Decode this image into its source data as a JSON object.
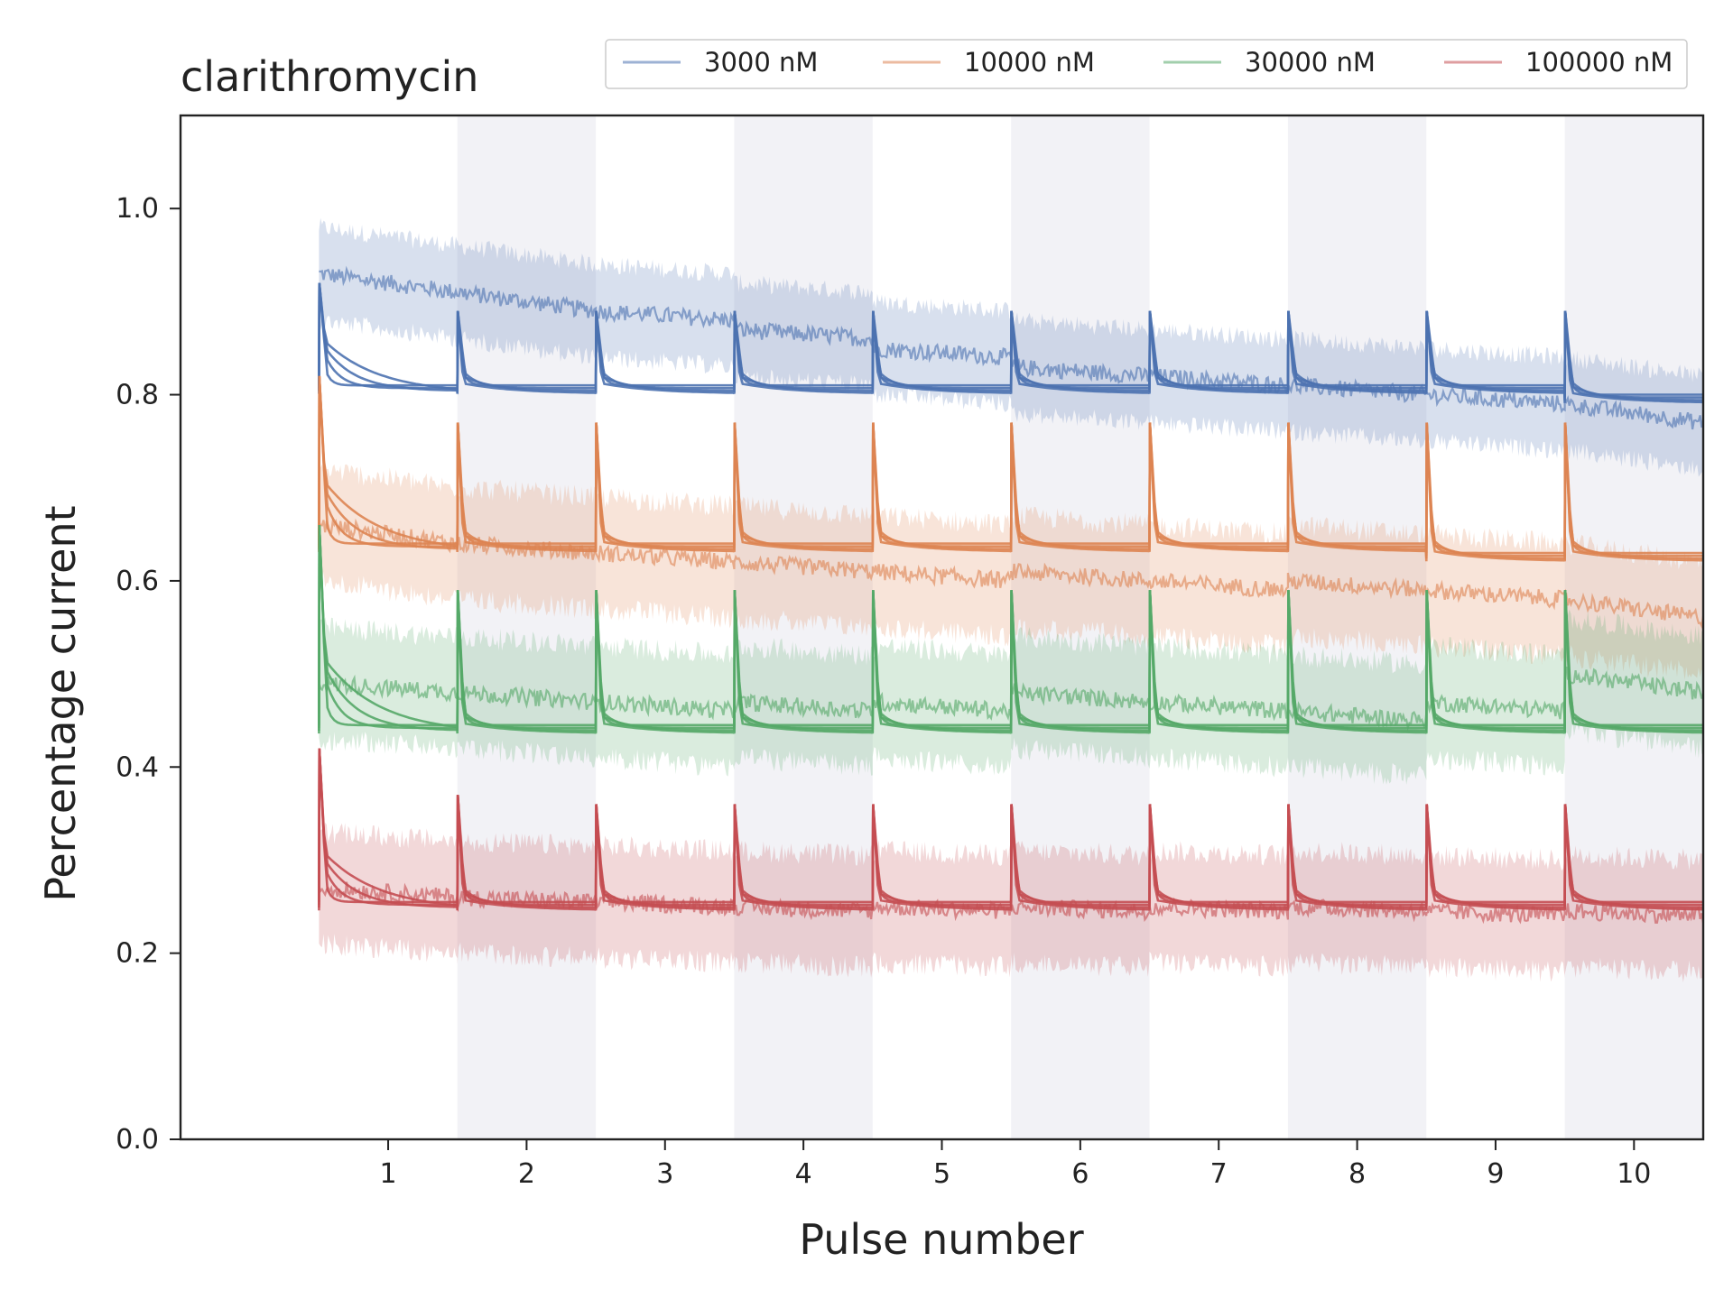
{
  "chart_data": {
    "type": "line",
    "title": "clarithromycin",
    "xlabel": "Pulse number",
    "ylabel": "Percentage current",
    "xlim": [
      -0.5,
      10.5
    ],
    "ylim": [
      0.0,
      1.1
    ],
    "xticks": [
      1,
      2,
      3,
      4,
      5,
      6,
      7,
      8,
      9,
      10
    ],
    "yticks": [
      0.0,
      0.2,
      0.4,
      0.6,
      0.8,
      1.0
    ],
    "ytick_labels": [
      "0.0",
      "0.2",
      "0.4",
      "0.6",
      "0.8",
      "1.0"
    ],
    "xtick_labels": [
      "1",
      "2",
      "3",
      "4",
      "5",
      "6",
      "7",
      "8",
      "9",
      "10"
    ],
    "shaded_pulses": [
      2,
      4,
      6,
      8,
      10
    ],
    "legend_position": "top-right",
    "legend_columns": 4,
    "pulses": [
      1,
      2,
      3,
      4,
      5,
      6,
      7,
      8,
      9,
      10
    ],
    "series": [
      {
        "name": "3000 nM",
        "color": "#4c72b0",
        "mean_start": [
          0.93,
          0.91,
          0.89,
          0.87,
          0.85,
          0.83,
          0.82,
          0.81,
          0.8,
          0.79
        ],
        "mean_end": [
          0.91,
          0.89,
          0.88,
          0.86,
          0.84,
          0.82,
          0.81,
          0.8,
          0.79,
          0.77
        ],
        "band_half_width": 0.05,
        "fit_peak": [
          0.92,
          0.89,
          0.89,
          0.89,
          0.89,
          0.89,
          0.89,
          0.89,
          0.89,
          0.89
        ],
        "fit_steady": [
          0.81,
          0.81,
          0.81,
          0.81,
          0.81,
          0.81,
          0.81,
          0.81,
          0.81,
          0.8
        ],
        "fit_initial": 0.85
      },
      {
        "name": "10000 nM",
        "color": "#dd8452",
        "mean_start": [
          0.66,
          0.64,
          0.63,
          0.62,
          0.61,
          0.61,
          0.6,
          0.6,
          0.59,
          0.58
        ],
        "mean_end": [
          0.64,
          0.63,
          0.62,
          0.61,
          0.6,
          0.6,
          0.59,
          0.59,
          0.58,
          0.56
        ],
        "band_half_width": 0.06,
        "fit_peak": [
          0.82,
          0.77,
          0.77,
          0.77,
          0.77,
          0.77,
          0.77,
          0.77,
          0.77,
          0.77
        ],
        "fit_steady": [
          0.64,
          0.64,
          0.64,
          0.64,
          0.64,
          0.64,
          0.64,
          0.64,
          0.63,
          0.63
        ],
        "fit_initial": 0.7
      },
      {
        "name": "30000 nM",
        "color": "#55a868",
        "mean_start": [
          0.49,
          0.48,
          0.47,
          0.47,
          0.47,
          0.48,
          0.47,
          0.46,
          0.47,
          0.5
        ],
        "mean_end": [
          0.48,
          0.47,
          0.46,
          0.46,
          0.46,
          0.47,
          0.46,
          0.45,
          0.46,
          0.48
        ],
        "band_half_width": 0.06,
        "fit_peak": [
          0.66,
          0.59,
          0.59,
          0.59,
          0.59,
          0.59,
          0.59,
          0.59,
          0.59,
          0.59
        ],
        "fit_steady": [
          0.445,
          0.445,
          0.445,
          0.445,
          0.445,
          0.445,
          0.445,
          0.445,
          0.445,
          0.445
        ],
        "fit_initial": 0.51
      },
      {
        "name": "100000 nM",
        "color": "#c44e52",
        "mean_start": [
          0.27,
          0.26,
          0.255,
          0.25,
          0.25,
          0.25,
          0.25,
          0.25,
          0.245,
          0.245
        ],
        "mean_end": [
          0.26,
          0.255,
          0.25,
          0.245,
          0.245,
          0.245,
          0.245,
          0.245,
          0.24,
          0.24
        ],
        "band_half_width": 0.06,
        "fit_peak": [
          0.42,
          0.37,
          0.36,
          0.36,
          0.36,
          0.36,
          0.36,
          0.36,
          0.36,
          0.36
        ],
        "fit_steady": [
          0.255,
          0.255,
          0.255,
          0.255,
          0.255,
          0.255,
          0.255,
          0.255,
          0.255,
          0.255
        ],
        "fit_initial": 0.3
      }
    ]
  }
}
